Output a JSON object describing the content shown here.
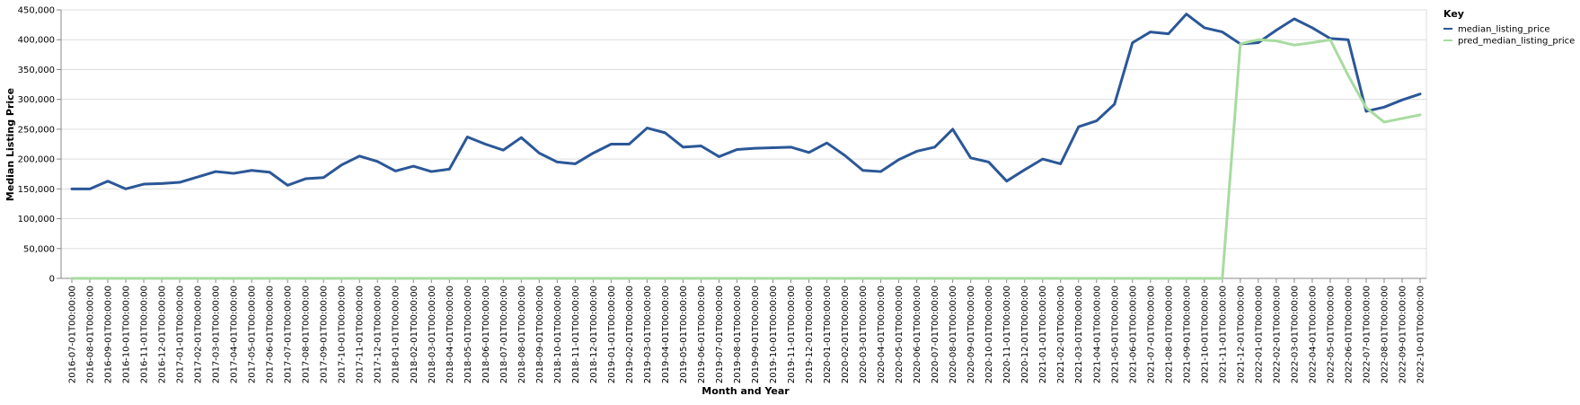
{
  "chart_data": {
    "type": "line",
    "xlabel": "Month and Year",
    "ylabel": "Median Listing Price",
    "ylim": [
      0,
      450000
    ],
    "y_ticks": [
      0,
      50000,
      100000,
      150000,
      200000,
      250000,
      300000,
      350000,
      400000,
      450000
    ],
    "y_tick_labels": [
      "0",
      "50,000",
      "100,000",
      "150,000",
      "200,000",
      "250,000",
      "300,000",
      "350,000",
      "400,000",
      "450,000"
    ],
    "grid": true,
    "legend_title": "Key",
    "legend_position": "top-right",
    "x": [
      "2016-07-01T00:00:00",
      "2016-08-01T00:00:00",
      "2016-09-01T00:00:00",
      "2016-10-01T00:00:00",
      "2016-11-01T00:00:00",
      "2016-12-01T00:00:00",
      "2017-01-01T00:00:00",
      "2017-02-01T00:00:00",
      "2017-03-01T00:00:00",
      "2017-04-01T00:00:00",
      "2017-05-01T00:00:00",
      "2017-06-01T00:00:00",
      "2017-07-01T00:00:00",
      "2017-08-01T00:00:00",
      "2017-09-01T00:00:00",
      "2017-10-01T00:00:00",
      "2017-11-01T00:00:00",
      "2017-12-01T00:00:00",
      "2018-01-01T00:00:00",
      "2018-02-01T00:00:00",
      "2018-03-01T00:00:00",
      "2018-04-01T00:00:00",
      "2018-05-01T00:00:00",
      "2018-06-01T00:00:00",
      "2018-07-01T00:00:00",
      "2018-08-01T00:00:00",
      "2018-09-01T00:00:00",
      "2018-10-01T00:00:00",
      "2018-11-01T00:00:00",
      "2018-12-01T00:00:00",
      "2019-01-01T00:00:00",
      "2019-02-01T00:00:00",
      "2019-03-01T00:00:00",
      "2019-04-01T00:00:00",
      "2019-05-01T00:00:00",
      "2019-06-01T00:00:00",
      "2019-07-01T00:00:00",
      "2019-08-01T00:00:00",
      "2019-09-01T00:00:00",
      "2019-10-01T00:00:00",
      "2019-11-01T00:00:00",
      "2019-12-01T00:00:00",
      "2020-01-01T00:00:00",
      "2020-02-01T00:00:00",
      "2020-03-01T00:00:00",
      "2020-04-01T00:00:00",
      "2020-05-01T00:00:00",
      "2020-06-01T00:00:00",
      "2020-07-01T00:00:00",
      "2020-08-01T00:00:00",
      "2020-09-01T00:00:00",
      "2020-10-01T00:00:00",
      "2020-11-01T00:00:00",
      "2020-12-01T00:00:00",
      "2021-01-01T00:00:00",
      "2021-02-01T00:00:00",
      "2021-03-01T00:00:00",
      "2021-04-01T00:00:00",
      "2021-05-01T00:00:00",
      "2021-06-01T00:00:00",
      "2021-07-01T00:00:00",
      "2021-08-01T00:00:00",
      "2021-09-01T00:00:00",
      "2021-10-01T00:00:00",
      "2021-11-01T00:00:00",
      "2021-12-01T00:00:00",
      "2022-01-01T00:00:00",
      "2022-02-01T00:00:00",
      "2022-03-01T00:00:00",
      "2022-04-01T00:00:00",
      "2022-05-01T00:00:00",
      "2022-06-01T00:00:00",
      "2022-07-01T00:00:00",
      "2022-08-01T00:00:00",
      "2022-09-01T00:00:00",
      "2022-10-01T00:00:00"
    ],
    "series": [
      {
        "name": "median_listing_price",
        "color": "#2b5797",
        "values": [
          150000,
          150000,
          163000,
          150000,
          158000,
          159000,
          161000,
          170000,
          179000,
          176000,
          181000,
          178000,
          156000,
          167000,
          169000,
          190000,
          205000,
          196000,
          180000,
          188000,
          179000,
          183000,
          237000,
          225000,
          215000,
          236000,
          210000,
          195000,
          192000,
          210000,
          225000,
          225000,
          252000,
          244000,
          220000,
          222000,
          204000,
          216000,
          218000,
          219000,
          220000,
          211000,
          227000,
          206000,
          181000,
          179000,
          199000,
          213000,
          220000,
          250000,
          202000,
          195000,
          163000,
          182000,
          200000,
          192000,
          254000,
          264000,
          292000,
          395000,
          413000,
          410000,
          443000,
          420000,
          413000,
          393000,
          395000,
          416000,
          435000,
          420000,
          402000,
          400000,
          280000,
          287000,
          299000,
          309000
        ]
      },
      {
        "name": "pred_median_listing_price",
        "color": "#a8dba0",
        "values": [
          0,
          0,
          0,
          0,
          0,
          0,
          0,
          0,
          0,
          0,
          0,
          0,
          0,
          0,
          0,
          0,
          0,
          0,
          0,
          0,
          0,
          0,
          0,
          0,
          0,
          0,
          0,
          0,
          0,
          0,
          0,
          0,
          0,
          0,
          0,
          0,
          0,
          0,
          0,
          0,
          0,
          0,
          0,
          0,
          0,
          0,
          0,
          0,
          0,
          0,
          0,
          0,
          0,
          0,
          0,
          0,
          0,
          0,
          0,
          0,
          0,
          0,
          0,
          0,
          0,
          393000,
          400000,
          398000,
          391000,
          395000,
          400000,
          340000,
          286000,
          262000,
          268000,
          274000
        ]
      }
    ]
  }
}
